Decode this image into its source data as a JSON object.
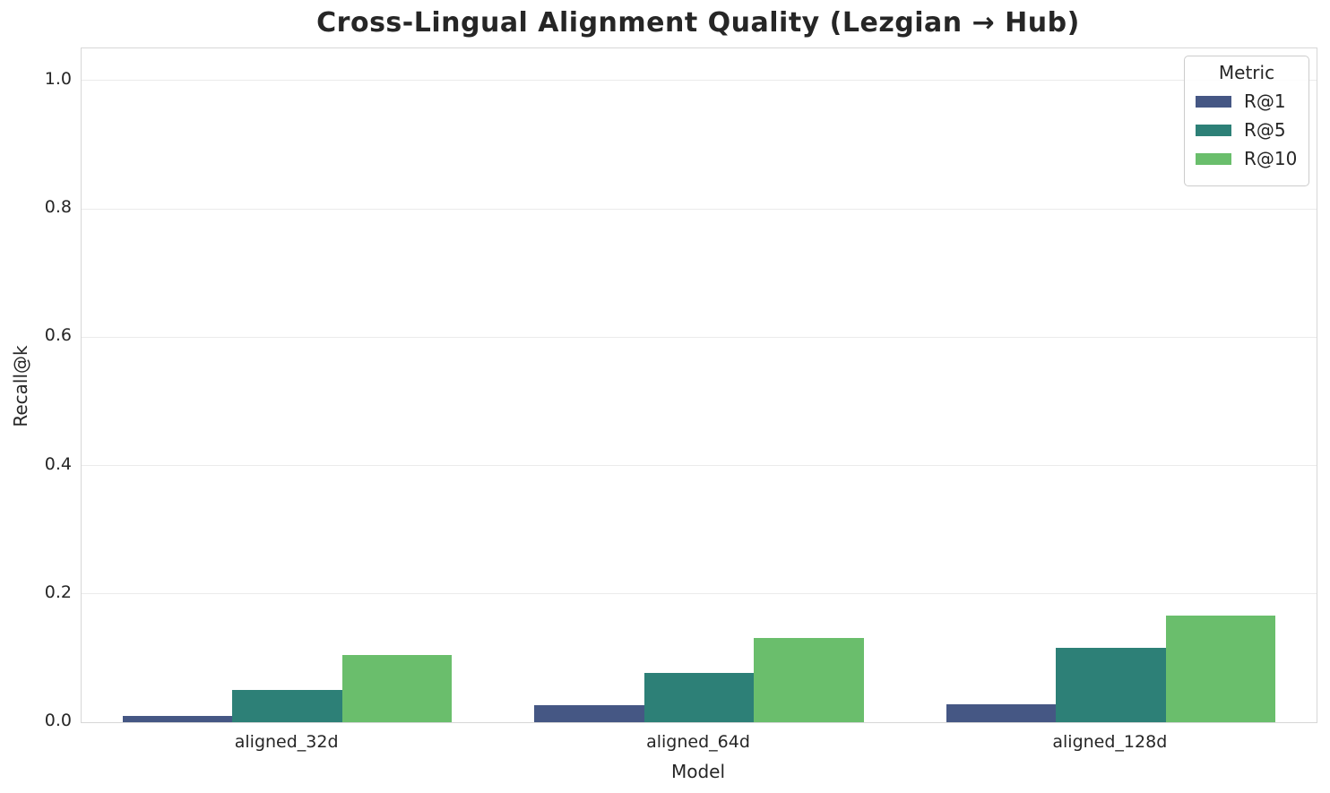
{
  "title": "Cross-Lingual Alignment Quality (Lezgian → Hub)",
  "chart_data": {
    "type": "bar",
    "title": "Cross-Lingual Alignment Quality (Lezgian → Hub)",
    "categories": [
      "aligned_32d",
      "aligned_64d",
      "aligned_128d"
    ],
    "series": [
      {
        "name": "R@1",
        "color": "#455784",
        "values": [
          0.01,
          0.026,
          0.028
        ]
      },
      {
        "name": "R@5",
        "color": "#2d8077",
        "values": [
          0.05,
          0.077,
          0.116
        ]
      },
      {
        "name": "R@10",
        "color": "#6abe6c",
        "values": [
          0.105,
          0.131,
          0.166
        ]
      }
    ],
    "xlabel": "Model",
    "ylabel": "Recall@k",
    "ylim": [
      0,
      1.05
    ],
    "yticks": [
      0.0,
      0.2,
      0.4,
      0.6,
      0.8,
      1.0
    ],
    "grid": "horizontal",
    "legend_title": "Metric",
    "legend_position": "upper right"
  },
  "style": {
    "gridline_color": "#ebebeb",
    "spine_color": "#d7d7d7",
    "text_color": "#262626",
    "background": "#ffffff"
  }
}
